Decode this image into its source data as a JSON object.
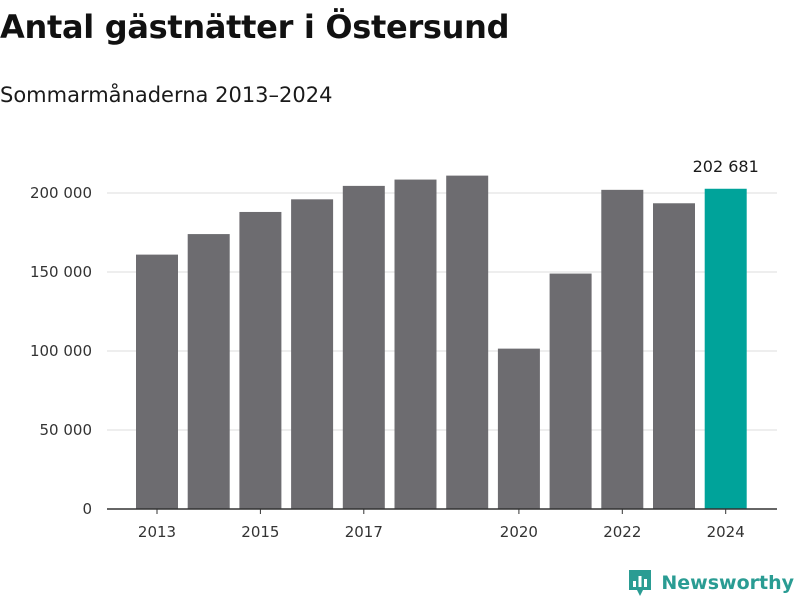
{
  "header": {
    "title": "Antal gästnätter i Östersund",
    "subtitle": "Sommarmånaderna 2013–2024"
  },
  "chart_data": {
    "type": "bar",
    "title": "Antal gästnätter i Östersund",
    "subtitle": "Sommarmånaderna 2013–2024",
    "categories": [
      "2013",
      "2014",
      "2015",
      "2016",
      "2017",
      "2018",
      "2019",
      "2020",
      "2021",
      "2022",
      "2023",
      "2024"
    ],
    "values": [
      161000,
      174000,
      188000,
      196000,
      204500,
      208500,
      211000,
      101500,
      149000,
      202000,
      193500,
      202681
    ],
    "ylim": [
      0,
      220000
    ],
    "yticks": [
      0,
      50000,
      100000,
      150000,
      200000
    ],
    "ytick_labels": [
      "0",
      "50 000",
      "100 000",
      "150 000",
      "200 000"
    ],
    "xtick_labels": [
      "2013",
      "2015",
      "2017",
      "2020",
      "2022",
      "2024"
    ],
    "data_labels": [
      {
        "category": "2024",
        "text": "202 681"
      }
    ],
    "grid": true,
    "colors": {
      "bar": "#6d6c70",
      "highlight": "#00a39a",
      "grid": "#dddddd",
      "axis": "#333333"
    },
    "highlight_category": "2024"
  },
  "brand": {
    "name": "Newsworthy",
    "icon": "newsworthy-logo-icon",
    "color": "#2a9c93"
  }
}
